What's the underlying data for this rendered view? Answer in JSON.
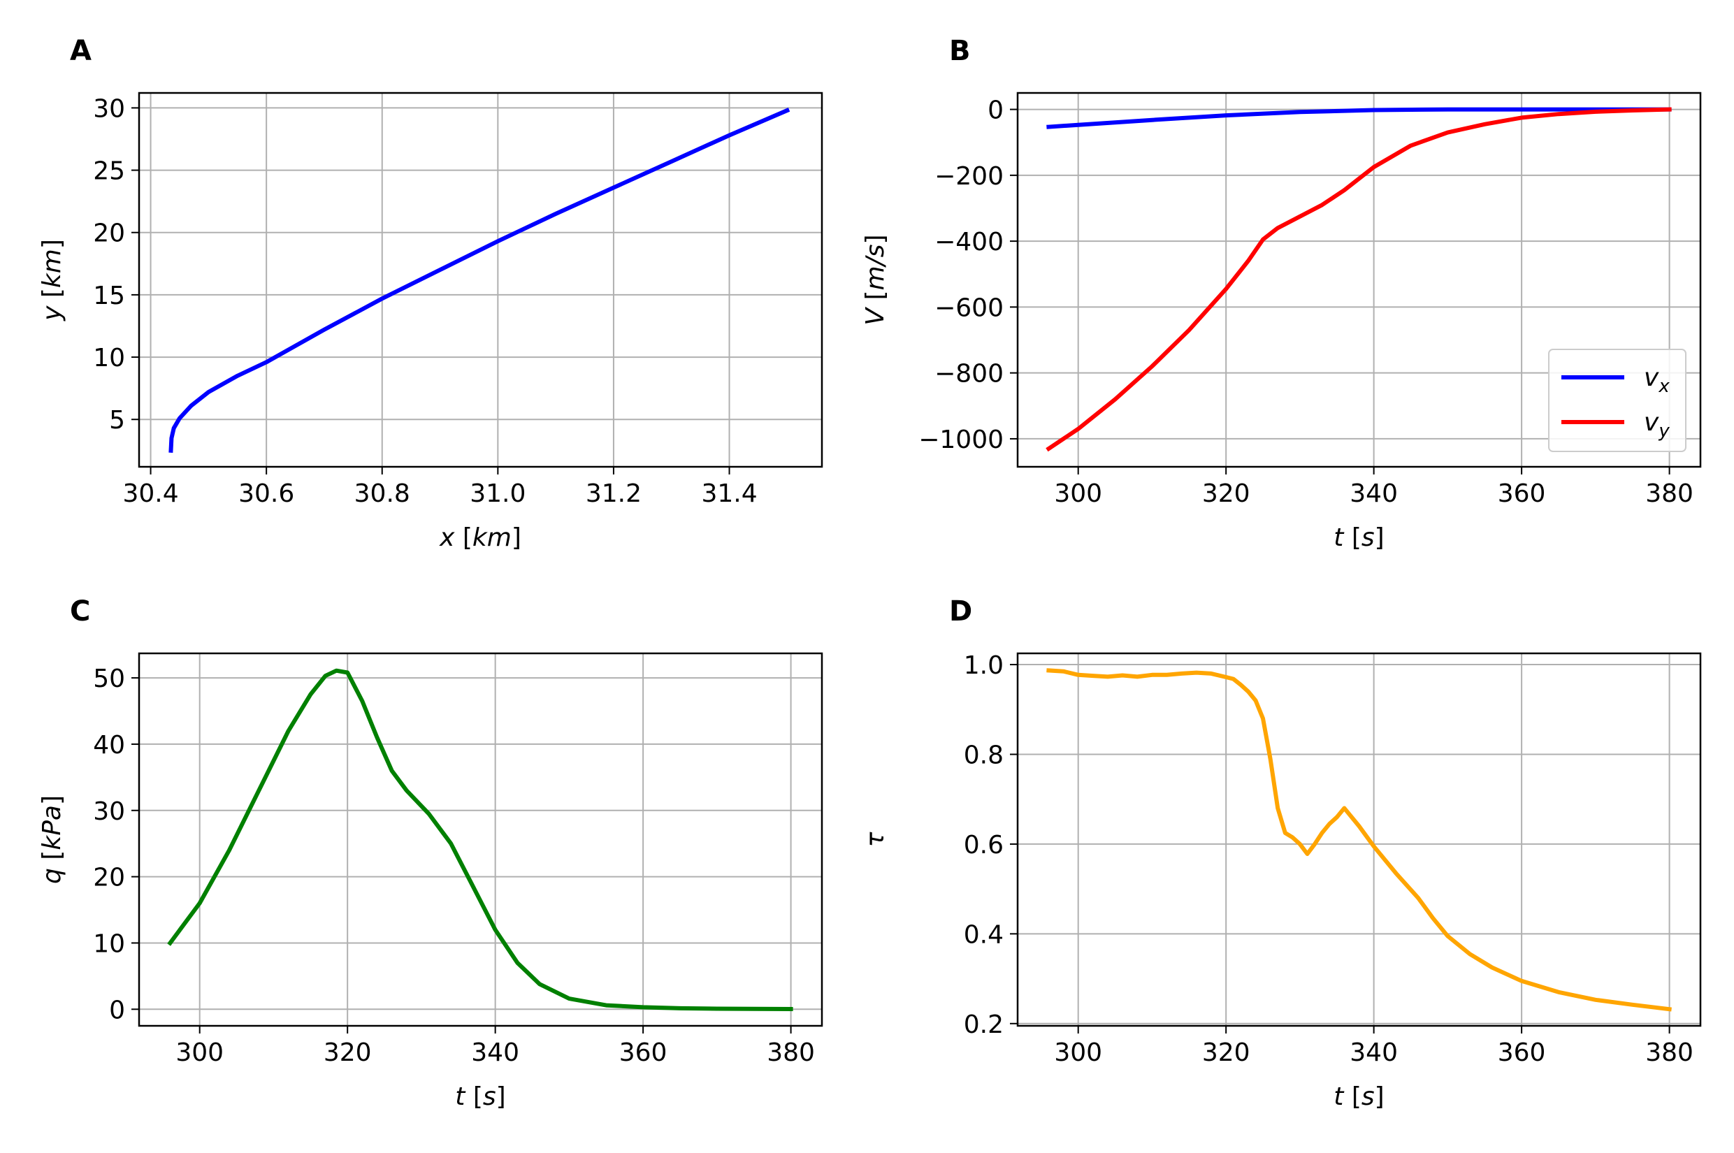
{
  "chart_data": [
    {
      "panel_label": "A",
      "type": "line",
      "xlabel": "x [km]",
      "ylabel": "y [km]",
      "xlim": [
        30.38,
        31.56
      ],
      "ylim": [
        1.2,
        31.2
      ],
      "xticks": [
        30.4,
        30.6,
        30.8,
        31.0,
        31.2,
        31.4
      ],
      "xtick_labels": [
        "30.4",
        "30.6",
        "30.8",
        "31.0",
        "31.2",
        "31.4"
      ],
      "yticks": [
        5,
        10,
        15,
        20,
        25,
        30
      ],
      "ytick_labels": [
        "5",
        "10",
        "15",
        "20",
        "25",
        "30"
      ],
      "grid": true,
      "series": [
        {
          "color": "#0000ff",
          "x": [
            30.435,
            30.436,
            30.44,
            30.45,
            30.47,
            30.5,
            30.55,
            30.6,
            30.7,
            30.8,
            30.9,
            31.0,
            31.1,
            31.2,
            31.3,
            31.4,
            31.5
          ],
          "y": [
            2.5,
            3.5,
            4.3,
            5.1,
            6.1,
            7.2,
            8.5,
            9.6,
            12.2,
            14.7,
            17.0,
            19.3,
            21.5,
            23.6,
            25.7,
            27.8,
            29.8
          ]
        }
      ]
    },
    {
      "panel_label": "B",
      "type": "line",
      "xlabel": "t [s]",
      "ylabel": "V [m/s]",
      "xlim": [
        291.8,
        384.2
      ],
      "ylim": [
        -1085,
        50
      ],
      "xticks": [
        300,
        320,
        340,
        360,
        380
      ],
      "xtick_labels": [
        "300",
        "320",
        "340",
        "360",
        "380"
      ],
      "yticks": [
        0,
        -200,
        -400,
        -600,
        -800,
        -1000
      ],
      "ytick_labels": [
        "0",
        "−200",
        "−400",
        "−600",
        "−800",
        "−1000"
      ],
      "grid": true,
      "legend": {
        "placement": "lower right",
        "entries": [
          "v",
          "v"
        ],
        "subscripts": [
          "x",
          "y"
        ]
      },
      "series": [
        {
          "name": "vx",
          "color": "#0000ff",
          "x": [
            296,
            300,
            310,
            320,
            330,
            340,
            350,
            360,
            370,
            380
          ],
          "y": [
            -53,
            -47,
            -32,
            -18,
            -8,
            -2,
            0,
            0,
            0,
            0
          ]
        },
        {
          "name": "vy",
          "color": "#ff0000",
          "x": [
            296,
            300,
            305,
            310,
            315,
            320,
            323,
            325,
            327,
            330,
            333,
            336,
            340,
            345,
            350,
            355,
            360,
            365,
            370,
            375,
            380
          ],
          "y": [
            -1030,
            -970,
            -880,
            -780,
            -670,
            -545,
            -460,
            -395,
            -360,
            -325,
            -290,
            -245,
            -175,
            -110,
            -70,
            -45,
            -25,
            -14,
            -7,
            -3,
            0
          ]
        }
      ]
    },
    {
      "panel_label": "C",
      "type": "line",
      "xlabel": "t [s]",
      "ylabel": "q [kPa]",
      "xlim": [
        291.8,
        384.2
      ],
      "ylim": [
        -2.5,
        53.7
      ],
      "xticks": [
        300,
        320,
        340,
        360,
        380
      ],
      "xtick_labels": [
        "300",
        "320",
        "340",
        "360",
        "380"
      ],
      "yticks": [
        0,
        10,
        20,
        30,
        40,
        50
      ],
      "ytick_labels": [
        "0",
        "10",
        "20",
        "30",
        "40",
        "50"
      ],
      "grid": true,
      "series": [
        {
          "color": "#008000",
          "x": [
            296,
            300,
            304,
            308,
            312,
            315,
            317,
            318.5,
            320,
            322,
            324,
            326,
            328,
            331,
            334,
            337,
            340,
            343,
            346,
            350,
            355,
            360,
            365,
            370,
            375,
            380
          ],
          "y": [
            10,
            16,
            24,
            33,
            42,
            47.5,
            50.3,
            51.1,
            50.8,
            46.5,
            41,
            36,
            33,
            29.5,
            25,
            18.5,
            12,
            7,
            3.8,
            1.6,
            0.6,
            0.3,
            0.15,
            0.08,
            0.05,
            0.03
          ]
        }
      ]
    },
    {
      "panel_label": "D",
      "type": "line",
      "xlabel": "t [s]",
      "ylabel": "τ",
      "xlim": [
        291.8,
        384.2
      ],
      "ylim": [
        0.195,
        1.025
      ],
      "xticks": [
        300,
        320,
        340,
        360,
        380
      ],
      "xtick_labels": [
        "300",
        "320",
        "340",
        "360",
        "380"
      ],
      "yticks": [
        0.2,
        0.4,
        0.6,
        0.8,
        1.0
      ],
      "ytick_labels": [
        "0.2",
        "0.4",
        "0.6",
        "0.8",
        "1.0"
      ],
      "grid": true,
      "series": [
        {
          "color": "#ffa500",
          "x": [
            296,
            298,
            300,
            302,
            304,
            306,
            308,
            310,
            312,
            314,
            316,
            318,
            320,
            321,
            322,
            323,
            324,
            325,
            326,
            327,
            328,
            329,
            330,
            331,
            332,
            333,
            334,
            335,
            336,
            338,
            340,
            343,
            346,
            348,
            350,
            353,
            356,
            360,
            365,
            370,
            375,
            380
          ],
          "y": [
            0.987,
            0.985,
            0.977,
            0.975,
            0.973,
            0.976,
            0.973,
            0.977,
            0.977,
            0.98,
            0.982,
            0.98,
            0.972,
            0.968,
            0.955,
            0.94,
            0.92,
            0.88,
            0.79,
            0.68,
            0.625,
            0.615,
            0.6,
            0.578,
            0.6,
            0.625,
            0.645,
            0.66,
            0.68,
            0.64,
            0.595,
            0.535,
            0.48,
            0.435,
            0.395,
            0.355,
            0.325,
            0.295,
            0.27,
            0.253,
            0.242,
            0.232
          ]
        }
      ]
    }
  ]
}
